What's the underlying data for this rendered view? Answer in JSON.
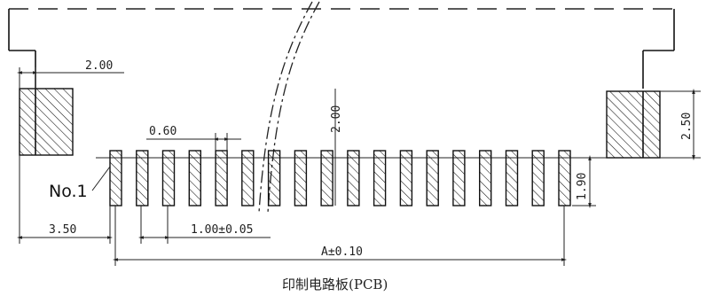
{
  "diagram": {
    "pin_label": "No.1",
    "pin_count": 18,
    "dimensions": {
      "shell_offset": "2.00",
      "pin_width": "0.60",
      "pad_height": "2.00",
      "side_height": "2.50",
      "pin_height": "1.90",
      "edge_to_first": "3.50",
      "pitch": "1.00±0.05",
      "total_span": "A±0.10"
    },
    "caption": "印制电路板(PCB)"
  }
}
